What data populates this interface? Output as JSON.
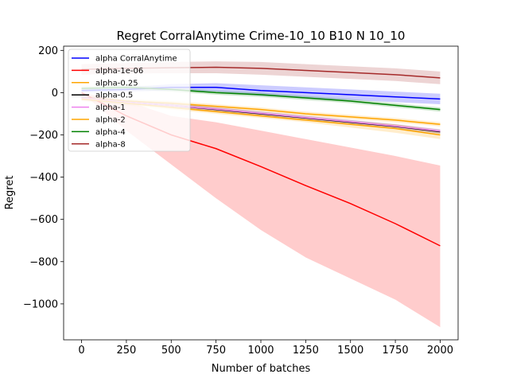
{
  "chart_data": {
    "type": "line",
    "title": "Regret CorralAnytime Crime-10_10 B10 N 10_10",
    "xlabel": "Number of batches",
    "ylabel": "Regret",
    "xlim": [
      -100,
      2100
    ],
    "ylim": [
      -1170,
      220
    ],
    "xticks": [
      0,
      250,
      500,
      750,
      1000,
      1250,
      1500,
      1750,
      2000
    ],
    "xtick_labels": [
      "0",
      "250",
      "500",
      "750",
      "1000",
      "1250",
      "1500",
      "1750",
      "2000"
    ],
    "yticks": [
      200,
      0,
      -200,
      -400,
      -600,
      -800,
      -1000
    ],
    "ytick_labels": [
      "200",
      "0",
      "−200",
      "−400",
      "−600",
      "−800",
      "−1000"
    ],
    "grid": false,
    "legend_position": "upper-left",
    "x": [
      0,
      250,
      500,
      750,
      1000,
      1250,
      1500,
      1750,
      2000
    ],
    "series": [
      {
        "name": "alpha CorralAnytime",
        "color": "#0000ff",
        "values": [
          10,
          15,
          25,
          25,
          10,
          0,
          -10,
          -20,
          -30
        ],
        "lower": [
          0,
          5,
          10,
          5,
          -15,
          -25,
          -35,
          -45,
          -55
        ],
        "upper": [
          20,
          25,
          40,
          45,
          35,
          25,
          15,
          5,
          -5
        ]
      },
      {
        "name": "alpha-1e-06",
        "color": "#ff0000",
        "values": [
          0,
          -110,
          -200,
          -265,
          -350,
          -440,
          -525,
          -620,
          -725
        ],
        "lower": [
          0,
          -180,
          -340,
          -500,
          -650,
          -780,
          -880,
          -980,
          -1110
        ],
        "upper": [
          0,
          -40,
          -110,
          -140,
          -180,
          -220,
          -260,
          -300,
          -345
        ]
      },
      {
        "name": "alpha-0.25",
        "color": "#ffa500",
        "values": [
          -25,
          -40,
          -50,
          -65,
          -80,
          -100,
          -115,
          -130,
          -150
        ],
        "lower": [
          -35,
          -50,
          -60,
          -75,
          -90,
          -110,
          -125,
          -140,
          -160
        ],
        "upper": [
          -15,
          -30,
          -40,
          -55,
          -70,
          -90,
          -105,
          -120,
          -140
        ]
      },
      {
        "name": "alpha-0.5",
        "color": "#000000",
        "values": [
          -25,
          -45,
          -60,
          -80,
          -100,
          -120,
          -140,
          -160,
          -185
        ],
        "lower": [
          -35,
          -55,
          -70,
          -90,
          -110,
          -130,
          -150,
          -170,
          -195
        ],
        "upper": [
          -15,
          -35,
          -50,
          -70,
          -90,
          -110,
          -130,
          -150,
          -175
        ]
      },
      {
        "name": "alpha-1",
        "color": "#ee82ee",
        "values": [
          -25,
          -45,
          -60,
          -78,
          -98,
          -118,
          -138,
          -158,
          -182
        ],
        "lower": [
          -35,
          -55,
          -70,
          -88,
          -108,
          -128,
          -148,
          -168,
          -192
        ],
        "upper": [
          -15,
          -35,
          -50,
          -68,
          -88,
          -108,
          -128,
          -148,
          -172
        ]
      },
      {
        "name": "alpha-2",
        "color": "#ffa500",
        "values": [
          -30,
          -50,
          -70,
          -90,
          -110,
          -130,
          -150,
          -170,
          -200
        ],
        "lower": [
          -40,
          -60,
          -80,
          -100,
          -120,
          -140,
          -165,
          -190,
          -220
        ],
        "upper": [
          -20,
          -40,
          -60,
          -80,
          -100,
          -120,
          -135,
          -150,
          -180
        ]
      },
      {
        "name": "alpha-4",
        "color": "#008000",
        "values": [
          20,
          25,
          15,
          0,
          -10,
          -25,
          -40,
          -60,
          -80
        ],
        "lower": [
          10,
          15,
          5,
          -10,
          -20,
          -35,
          -50,
          -70,
          -90
        ],
        "upper": [
          30,
          35,
          25,
          10,
          0,
          -15,
          -30,
          -50,
          -70
        ]
      },
      {
        "name": "alpha-8",
        "color": "#a52a2a",
        "values": [
          110,
          115,
          118,
          120,
          115,
          105,
          95,
          85,
          70
        ],
        "lower": [
          85,
          90,
          92,
          92,
          85,
          75,
          65,
          55,
          40
        ],
        "upper": [
          135,
          140,
          145,
          148,
          145,
          135,
          125,
          115,
          100
        ]
      }
    ]
  }
}
